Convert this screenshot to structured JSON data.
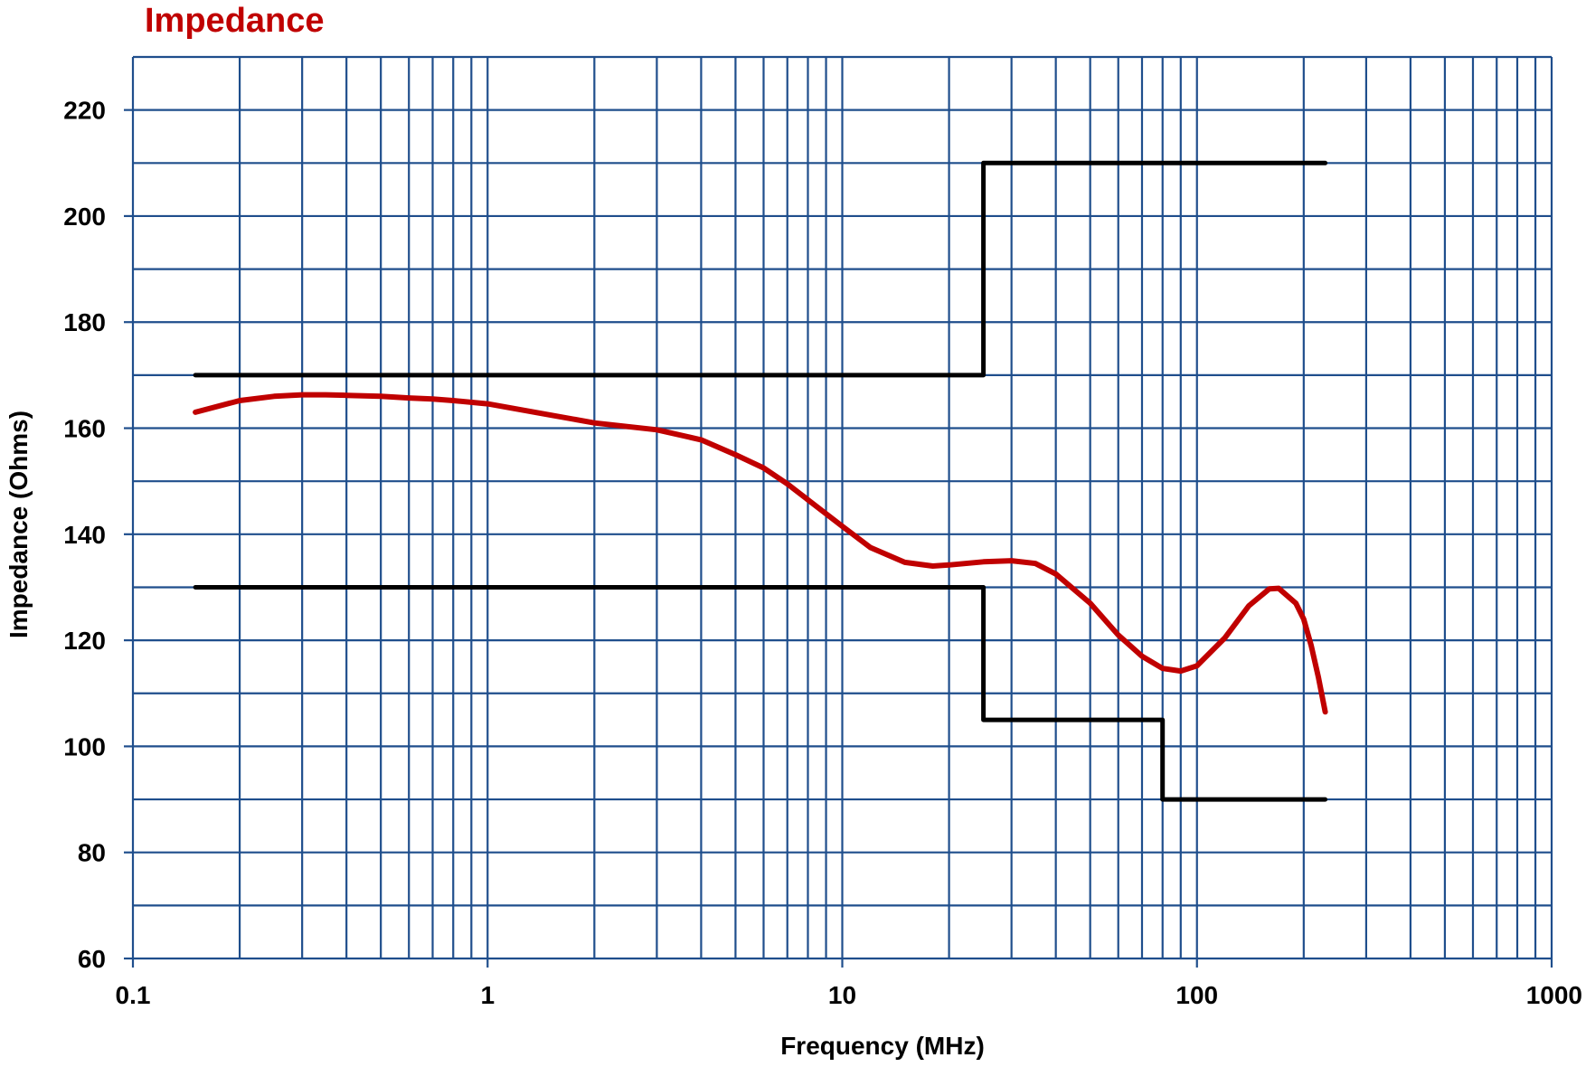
{
  "colors": {
    "title": "#c00000",
    "grid": "#1f4e8c",
    "limit": "#000000",
    "curve": "#c00000"
  },
  "chart_data": {
    "type": "line",
    "title": "Impedance",
    "xlabel": "Frequency (MHz)",
    "ylabel": "Impedance (Ohms)",
    "xscale": "log",
    "xlim": [
      0.1,
      1000
    ],
    "ylim": [
      60,
      230
    ],
    "xticks": [
      0.1,
      1,
      10,
      100,
      1000
    ],
    "xtick_labels": [
      "0.1",
      "1",
      "10",
      "100",
      "1000"
    ],
    "yticks": [
      60,
      80,
      100,
      120,
      140,
      160,
      180,
      200,
      220
    ],
    "ytick_labels": [
      "60",
      "80",
      "100",
      "120",
      "140",
      "160",
      "180",
      "200",
      "220"
    ],
    "grid": true,
    "legend": "none",
    "series": [
      {
        "role": "upper-limit",
        "x": [
          0.15,
          25,
          25,
          230
        ],
        "y": [
          170,
          170,
          210,
          210
        ]
      },
      {
        "role": "lower-limit",
        "x": [
          0.15,
          25,
          25,
          80,
          80,
          230
        ],
        "y": [
          130,
          130,
          105,
          105,
          90,
          90
        ]
      },
      {
        "role": "measured",
        "x": [
          0.15,
          0.2,
          0.25,
          0.3,
          0.35,
          0.4,
          0.5,
          0.6,
          0.7,
          0.8,
          1,
          1.5,
          2,
          3,
          4,
          5,
          6,
          7,
          8,
          10,
          12,
          15,
          18,
          20,
          25,
          30,
          35,
          40,
          50,
          60,
          70,
          80,
          90,
          100,
          120,
          140,
          160,
          170,
          190,
          200,
          210,
          220,
          230
        ],
        "y": [
          163,
          165.2,
          166,
          166.3,
          166.3,
          166.2,
          166,
          165.7,
          165.5,
          165.2,
          164.6,
          162.5,
          161,
          159.7,
          157.8,
          155,
          152.5,
          149.5,
          146.5,
          141.5,
          137.5,
          134.7,
          134,
          134.2,
          134.8,
          135,
          134.5,
          132.5,
          127,
          121,
          117,
          114.7,
          114.2,
          115.2,
          120.5,
          126.5,
          129.7,
          129.8,
          127,
          124,
          119,
          113,
          106.5
        ]
      }
    ]
  }
}
